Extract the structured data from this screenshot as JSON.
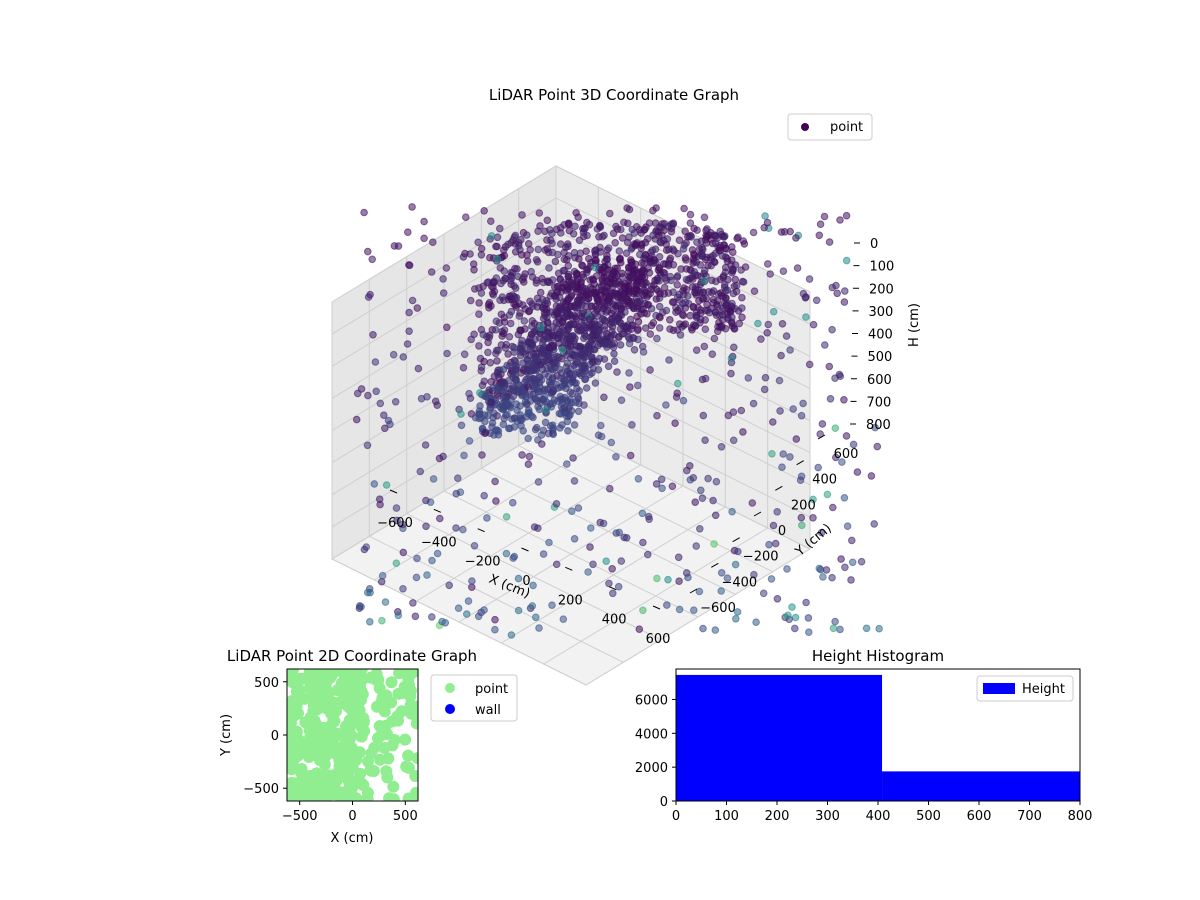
{
  "chart_data": [
    {
      "type": "scatter",
      "projection": "3d",
      "title": "LiDAR Point 3D Coordinate Graph",
      "xlabel": "X (cm)",
      "ylabel": "Y (cm)",
      "zlabel": "H (cm)",
      "xlim": [
        -600,
        600
      ],
      "ylim": [
        -600,
        600
      ],
      "zlim": [
        0,
        800
      ],
      "z_inverted": true,
      "x_ticks": [
        "−600",
        "−400",
        "−200",
        "0",
        "200",
        "400",
        "600"
      ],
      "y_ticks": [
        "−600",
        "−400",
        "−200",
        "0",
        "200",
        "400",
        "600"
      ],
      "z_ticks": [
        "0",
        "100",
        "200",
        "300",
        "400",
        "500",
        "600",
        "700",
        "800"
      ],
      "legend": [
        {
          "name": "point",
          "color": "#440154"
        }
      ],
      "legend_position": "top-right",
      "colormap": "viridis",
      "grid": true
    },
    {
      "type": "scatter",
      "title": "LiDAR Point 2D Coordinate Graph",
      "xlabel": "X (cm)",
      "ylabel": "Y (cm)",
      "xlim": [
        -620,
        620
      ],
      "ylim": [
        -620,
        620
      ],
      "x_ticks": [
        "−500",
        "0",
        "500"
      ],
      "y_ticks": [
        "−500",
        "0",
        "500"
      ],
      "series": [
        {
          "name": "point",
          "color": "#90ee90"
        },
        {
          "name": "wall",
          "color": "#0000ff"
        }
      ],
      "legend_position": "outside-right"
    },
    {
      "type": "bar",
      "title": "Height Histogram",
      "xlabel": "",
      "ylabel": "",
      "bins": [
        [
          0,
          408
        ],
        [
          408,
          800
        ]
      ],
      "values": [
        7450,
        1750
      ],
      "xlim": [
        0,
        800
      ],
      "ylim": [
        0,
        7800
      ],
      "x_ticks": [
        "0",
        "100",
        "200",
        "300",
        "400",
        "500",
        "600",
        "700",
        "800"
      ],
      "y_ticks": [
        "0",
        "2000",
        "4000",
        "6000"
      ],
      "series": [
        {
          "name": "Height",
          "color": "#0000ff"
        }
      ],
      "legend_position": "top-right"
    }
  ]
}
